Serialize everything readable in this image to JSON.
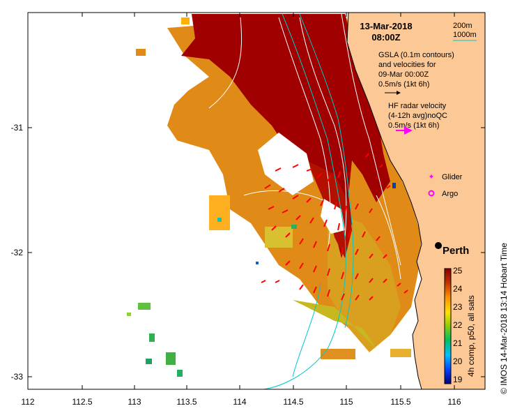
{
  "title": {
    "date": "13-Mar-2018",
    "time": "08:00Z"
  },
  "axes": {
    "x_ticks": [
      "112",
      "112.5",
      "113",
      "113.5",
      "114",
      "114.5",
      "115",
      "115.5",
      "116"
    ],
    "y_ticks": [
      "-31",
      "-32",
      "-33"
    ]
  },
  "legend": {
    "isobath_200": "200m",
    "isobath_1000": "1000m",
    "gsla_line1": "GSLA (0.1m contours)",
    "gsla_line2": "and velocities for",
    "gsla_line3": "09-Mar 00:00Z",
    "gsla_scale": "0.5m/s (1kt 6h)",
    "hf_line1": "HF radar velocity",
    "hf_line2": "(4-12h avg)noQC",
    "hf_scale": "0.5m/s (1kt 6h)",
    "glider": "Glider",
    "argo": "Argo",
    "city": "Perth"
  },
  "colorbar": {
    "label": "4h comp, p50, all sats",
    "ticks": [
      "25",
      "24",
      "23",
      "22",
      "21",
      "20",
      "19"
    ]
  },
  "credit": "© IMOS 14-Mar-2018 13:14 Hobart Time",
  "colors": {
    "land": "#fcc896",
    "sst_warm": "#a00000",
    "sst_orange": "#e08010",
    "hf_arrow": "#ff0000",
    "argo": "#ff00ff",
    "isobath_1000": "#00c8c8"
  }
}
